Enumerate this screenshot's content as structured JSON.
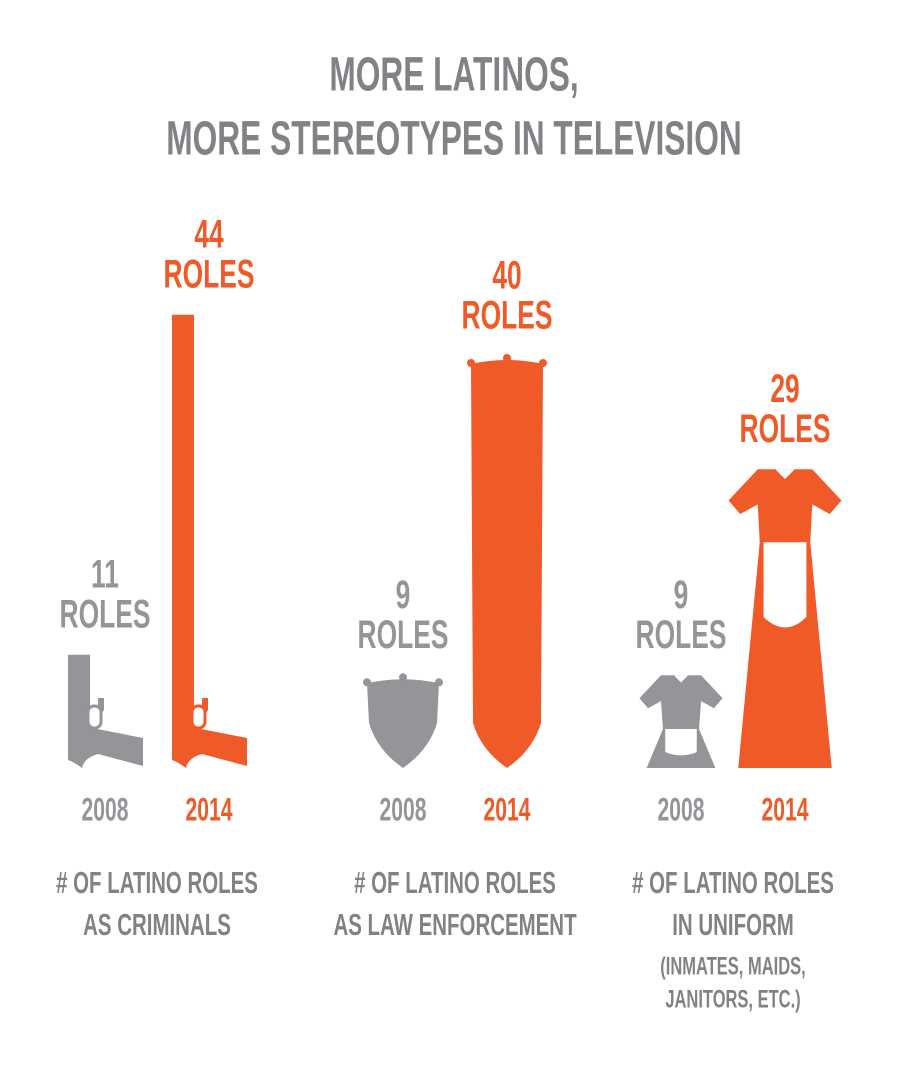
{
  "chart_data": {
    "type": "pictograph",
    "title": [
      "MORE LATINOS,",
      "MORE STEREOTYPES IN TELEVISION"
    ],
    "unit": "ROLES",
    "categories": [
      [
        "# OF LATINO ROLES",
        "AS CRIMINALS"
      ],
      [
        "# OF LATINO ROLES",
        "AS LAW ENFORCEMENT"
      ],
      [
        "# OF LATINO ROLES",
        "IN UNIFORM"
      ]
    ],
    "annotation": [
      "(INMATES, MAIDS,",
      "JANITORS, ETC.)"
    ],
    "icons": [
      "gun",
      "shield",
      "dress"
    ],
    "series": [
      {
        "name": "2008",
        "color": "#939598",
        "values": [
          11,
          9,
          9
        ]
      },
      {
        "name": "2014",
        "color": "#f05a28",
        "values": [
          44,
          40,
          29
        ]
      }
    ]
  }
}
